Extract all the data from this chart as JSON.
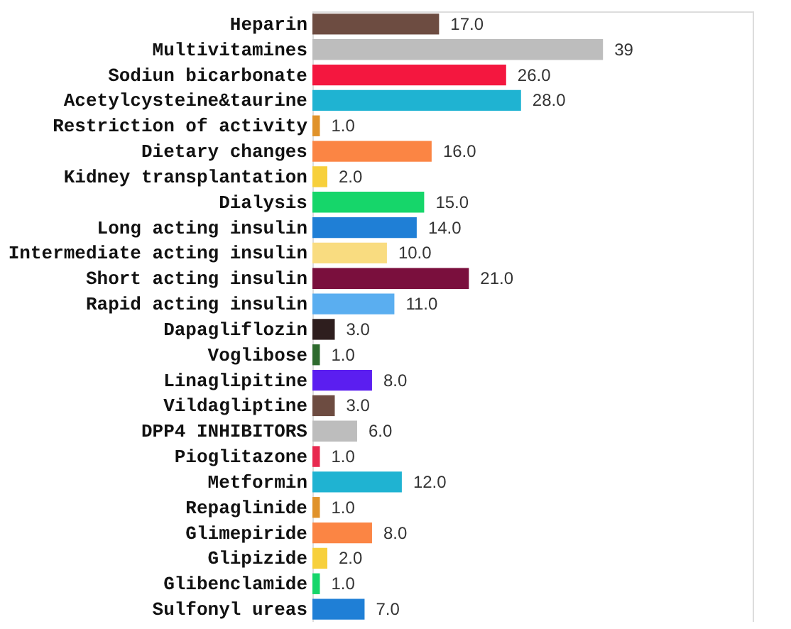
{
  "chart_data": {
    "type": "bar",
    "orientation": "horizontal",
    "categories": [
      "Heparin",
      "Multivitamines",
      "Sodiun bicarbonate",
      "Acetylcysteine&taurine",
      "Restriction of activity",
      "Dietary changes",
      "Kidney transplantation",
      "Dialysis",
      "Long acting insulin",
      "Intermediate acting insulin",
      "Short acting insulin",
      "Rapid acting insulin",
      "Dapagliflozin",
      "Voglibose",
      "Linaglipitine",
      "Vildagliptine",
      "DPP4 INHIBITORS",
      "Pioglitazone",
      "Metformin",
      "Repaglinide",
      "Glimepiride",
      "Glipizide",
      "Glibenclamide",
      "Sulfonyl ureas"
    ],
    "values": [
      17,
      39,
      26,
      28,
      1,
      16,
      2,
      15,
      14,
      10,
      21,
      11,
      3,
      1,
      8,
      3,
      6,
      1,
      12,
      1,
      8,
      2,
      1,
      7
    ],
    "colors": [
      "#6d4c41",
      "#bdbdbd",
      "#f4173f",
      "#1fb3d2",
      "#e0922a",
      "#fb8544",
      "#f7d03c",
      "#16d66a",
      "#1f7fd6",
      "#f9dc80",
      "#7a0f3d",
      "#5aaef0",
      "#2e1e1e",
      "#2e6b2e",
      "#5b1ef0",
      "#6d4c41",
      "#bdbdbd",
      "#e8294f",
      "#1fb3d2",
      "#e0922a",
      "#fb8544",
      "#f7d03c",
      "#16d66a",
      "#1f7fd6"
    ],
    "value_labels": [
      "17.0",
      "39",
      "26.0",
      "28.0",
      "1.0",
      "16.0",
      "2.0",
      "15.0",
      "14.0",
      "10.0",
      "21.0",
      "11.0",
      "3.0",
      "1.0",
      "8.0",
      "3.0",
      "6.0",
      "1.0",
      "12.0",
      "1.0",
      "8.0",
      "2.0",
      "1.0",
      "7.0"
    ],
    "grid": false,
    "legend": false
  }
}
